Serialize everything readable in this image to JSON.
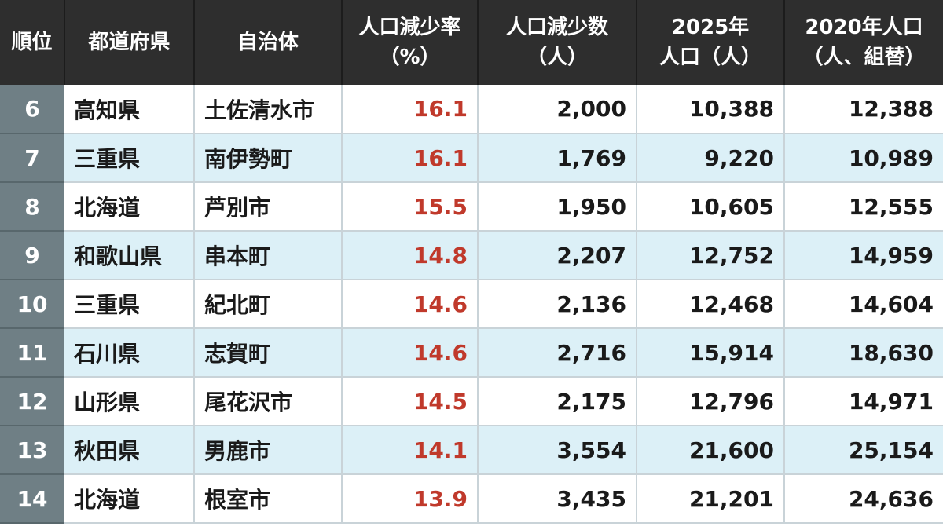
{
  "chart_data": {
    "type": "table",
    "columns": [
      {
        "key": "rank",
        "lines": [
          "順位"
        ]
      },
      {
        "key": "prefecture",
        "lines": [
          "都道府県"
        ]
      },
      {
        "key": "municipality",
        "lines": [
          "自治体"
        ]
      },
      {
        "key": "decline_rate",
        "lines": [
          "人口減少率",
          "（%）"
        ]
      },
      {
        "key": "decline_count",
        "lines": [
          "人口減少数",
          "（人）"
        ]
      },
      {
        "key": "pop_2025",
        "lines": [
          "2025年",
          "人口（人）"
        ]
      },
      {
        "key": "pop_2020",
        "lines": [
          "2020年人口",
          "（人、組替）"
        ]
      }
    ],
    "rows": [
      {
        "rank": "6",
        "prefecture": "高知県",
        "municipality": "土佐清水市",
        "decline_rate": "16.1",
        "decline_count": "2,000",
        "pop_2025": "10,388",
        "pop_2020": "12,388"
      },
      {
        "rank": "7",
        "prefecture": "三重県",
        "municipality": "南伊勢町",
        "decline_rate": "16.1",
        "decline_count": "1,769",
        "pop_2025": "9,220",
        "pop_2020": "10,989"
      },
      {
        "rank": "8",
        "prefecture": "北海道",
        "municipality": "芦別市",
        "decline_rate": "15.5",
        "decline_count": "1,950",
        "pop_2025": "10,605",
        "pop_2020": "12,555"
      },
      {
        "rank": "9",
        "prefecture": "和歌山県",
        "municipality": "串本町",
        "decline_rate": "14.8",
        "decline_count": "2,207",
        "pop_2025": "12,752",
        "pop_2020": "14,959"
      },
      {
        "rank": "10",
        "prefecture": "三重県",
        "municipality": "紀北町",
        "decline_rate": "14.6",
        "decline_count": "2,136",
        "pop_2025": "12,468",
        "pop_2020": "14,604"
      },
      {
        "rank": "11",
        "prefecture": "石川県",
        "municipality": "志賀町",
        "decline_rate": "14.6",
        "decline_count": "2,716",
        "pop_2025": "15,914",
        "pop_2020": "18,630"
      },
      {
        "rank": "12",
        "prefecture": "山形県",
        "municipality": "尾花沢市",
        "decline_rate": "14.5",
        "decline_count": "2,175",
        "pop_2025": "12,796",
        "pop_2020": "14,971"
      },
      {
        "rank": "13",
        "prefecture": "秋田県",
        "municipality": "男鹿市",
        "decline_rate": "14.1",
        "decline_count": "3,554",
        "pop_2025": "21,600",
        "pop_2020": "25,154"
      },
      {
        "rank": "14",
        "prefecture": "北海道",
        "municipality": "根室市",
        "decline_rate": "13.9",
        "decline_count": "3,435",
        "pop_2025": "21,201",
        "pop_2020": "24,636"
      }
    ],
    "colors": {
      "header_bg": "#2e2e2e",
      "header_text": "#ffffff",
      "rank_bg": "#6f7f85",
      "row_odd": "#ffffff",
      "row_even": "#dcf0f7",
      "rate_text": "#c0392b"
    }
  }
}
